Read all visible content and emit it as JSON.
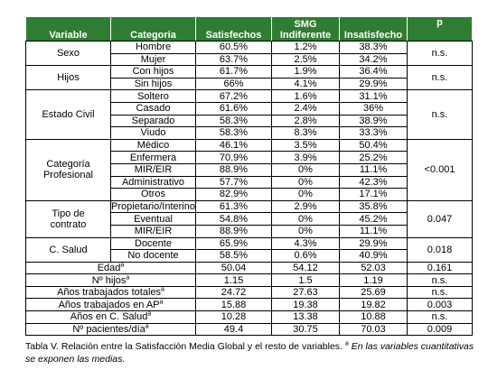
{
  "table": {
    "headers": [
      "Variable",
      "Categoria",
      "Satisfechos",
      "SMG\nIndiferente",
      "Insatisfecho",
      "p"
    ],
    "groups": [
      {
        "variable": "Sexo",
        "p": "n.s.",
        "rows": [
          {
            "category": "Hombre",
            "values": [
              "60.5%",
              "1.2%",
              "38.3%"
            ]
          },
          {
            "category": "Mujer",
            "values": [
              "63.7%",
              "2.5%",
              "34.2%"
            ]
          }
        ]
      },
      {
        "variable": "Hijos",
        "p": "n.s.",
        "rows": [
          {
            "category": "Con hijos",
            "values": [
              "61.7%",
              "1.9%",
              "36.4%"
            ]
          },
          {
            "category": "Sin hijos",
            "values": [
              "66%",
              "4.1%",
              "29.9%"
            ]
          }
        ]
      },
      {
        "variable": "Estado Civil",
        "p": "n.s.",
        "rows": [
          {
            "category": "Soltero",
            "values": [
              "67.2%",
              "1.6%",
              "31.1%"
            ]
          },
          {
            "category": "Casado",
            "values": [
              "61.6%",
              "2.4%",
              "36%"
            ]
          },
          {
            "category": "Separado",
            "values": [
              "58.3%",
              "2.8%",
              "38.9%"
            ]
          },
          {
            "category": "Viudo",
            "values": [
              "58.3%",
              "8.3%",
              "33.3%"
            ]
          }
        ]
      },
      {
        "variable": "Categoría\nProfesional",
        "p": "<0.001",
        "rows": [
          {
            "category": "Médico",
            "values": [
              "46.1%",
              "3.5%",
              "50.4%"
            ]
          },
          {
            "category": "Enfermera",
            "values": [
              "70.9%",
              "3.9%",
              "25.2%"
            ]
          },
          {
            "category": "MIR/EIR",
            "values": [
              "88.9%",
              "0%",
              "11.1%"
            ]
          },
          {
            "category": "Administrativo",
            "values": [
              "57.7%",
              "0%",
              "42.3%"
            ]
          },
          {
            "category": "Otros",
            "values": [
              "82.9%",
              "0%",
              "17.1%"
            ]
          }
        ]
      },
      {
        "variable": "Tipo de\ncontrato",
        "p": "0.047",
        "rows": [
          {
            "category": "Propietario/Interino",
            "values": [
              "61.3%",
              "2.9%",
              "35.8%"
            ]
          },
          {
            "category": "Eventual",
            "values": [
              "54.8%",
              "0%",
              "45.2%"
            ]
          },
          {
            "category": "MIR/EIR",
            "values": [
              "88.9%",
              "0%",
              "11.1%"
            ]
          }
        ]
      },
      {
        "variable": "C. Salud",
        "p": "0.018",
        "rows": [
          {
            "category": "Docente",
            "values": [
              "65.9%",
              "4.3%",
              "29.9%"
            ]
          },
          {
            "category": "No docente",
            "values": [
              "58.5%",
              "0.6%",
              "40.9%"
            ]
          }
        ]
      }
    ],
    "quantitative": [
      {
        "label": "Edad",
        "sup": "a",
        "values": [
          "50.04",
          "54.12",
          "52.03"
        ],
        "p": "0.161"
      },
      {
        "label": "Nº hijos",
        "sup": "a",
        "values": [
          "1.15",
          "1.5",
          "1.19"
        ],
        "p": "n.s."
      },
      {
        "label": "Años trabajados totales",
        "sup": "a",
        "values": [
          "24.72",
          "27.63",
          "25.69"
        ],
        "p": "n.s."
      },
      {
        "label": "Años trabajados en AP",
        "sup": "a",
        "values": [
          "15.88",
          "19.38",
          "19.82"
        ],
        "p": "0.003"
      },
      {
        "label": "Años en C. Salud",
        "sup": "a",
        "values": [
          "10.28",
          "13.38",
          "10.88"
        ],
        "p": "n.s."
      },
      {
        "label": "Nº pacientes/día",
        "sup": "a",
        "values": [
          "49.4",
          "30.75",
          "70.03"
        ],
        "p": "0.009"
      }
    ]
  },
  "caption": {
    "text": "Tabla V. Relación entre la Satisfacción Media Global y el resto de variables.",
    "note_mark": "a",
    "note": "En las variables cuantitativas se exponen las medias."
  }
}
